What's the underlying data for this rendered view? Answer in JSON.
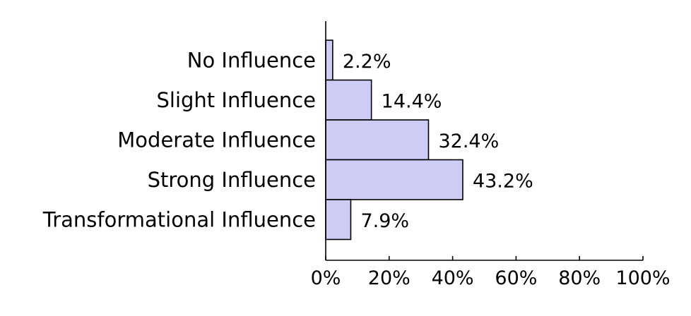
{
  "chart_data": {
    "type": "bar",
    "orientation": "horizontal",
    "title": "",
    "xlabel": "",
    "ylabel": "",
    "categories": [
      "No Influence",
      "Slight Influence",
      "Moderate Influence",
      "Strong Influence",
      "Transformational Influence"
    ],
    "values": [
      2.2,
      14.4,
      32.4,
      43.2,
      7.9
    ],
    "value_labels": [
      "2.2%",
      "14.4%",
      "32.4%",
      "43.2%",
      "7.9%"
    ],
    "xlim": [
      0,
      100
    ],
    "x_ticks": [
      0,
      20,
      40,
      60,
      80,
      100
    ],
    "x_tick_labels": [
      "0%",
      "20%",
      "40%",
      "60%",
      "80%",
      "100%"
    ],
    "grid": false,
    "legend": "none",
    "colors": {
      "bar_fill": "#ccccf5",
      "bar_stroke": "#000000",
      "axis": "#000000",
      "text": "#000000"
    }
  }
}
